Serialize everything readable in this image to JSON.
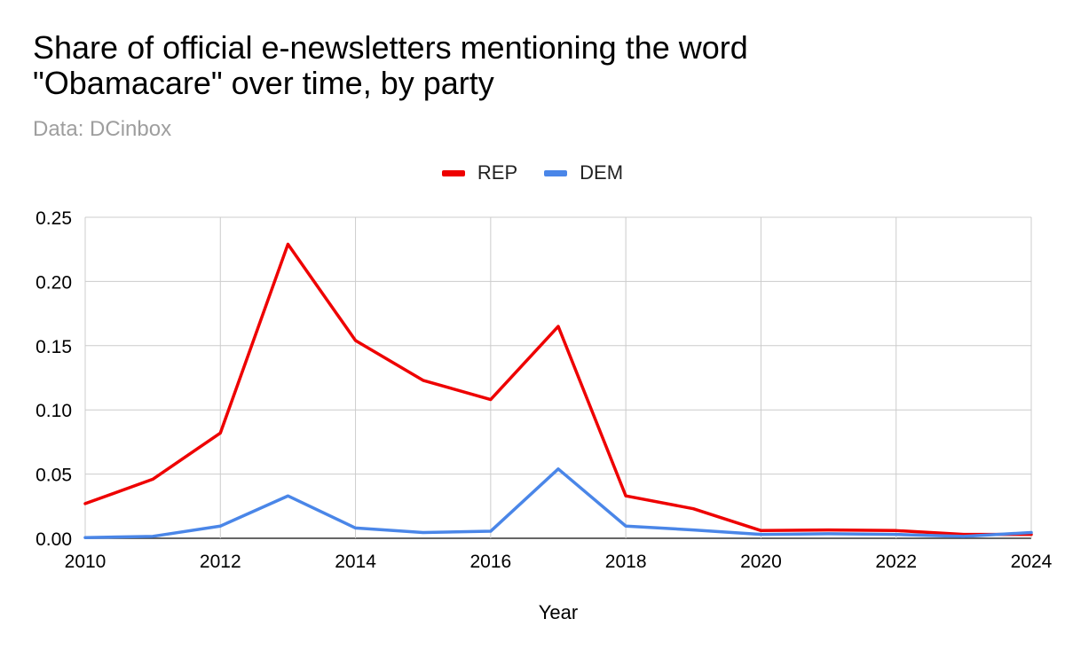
{
  "title": "Share of official e-newsletters mentioning the word \"Obamacare\" over time, by party",
  "subtitle": "Data: DCinbox",
  "chart_data": {
    "type": "line",
    "x": [
      2010,
      2011,
      2012,
      2013,
      2014,
      2015,
      2016,
      2017,
      2018,
      2019,
      2020,
      2021,
      2022,
      2023,
      2024
    ],
    "series": [
      {
        "name": "REP",
        "color": "#ee0000",
        "values": [
          0.027,
          0.046,
          0.082,
          0.229,
          0.154,
          0.123,
          0.108,
          0.165,
          0.033,
          0.023,
          0.006,
          0.0065,
          0.006,
          0.003,
          0.003
        ]
      },
      {
        "name": "DEM",
        "color": "#4a86e8",
        "values": [
          0.0005,
          0.0015,
          0.0095,
          0.033,
          0.008,
          0.0045,
          0.0055,
          0.054,
          0.0095,
          0.0065,
          0.003,
          0.0035,
          0.003,
          0.0015,
          0.0045
        ]
      }
    ],
    "xticks": [
      "2010",
      "2012",
      "2014",
      "2016",
      "2018",
      "2020",
      "2022",
      "2024"
    ],
    "yticks": [
      "0.00",
      "0.05",
      "0.10",
      "0.15",
      "0.20",
      "0.25"
    ],
    "xlim": [
      2010,
      2024
    ],
    "ylim": [
      0,
      0.25
    ],
    "xlabel": "Year",
    "ylabel": "",
    "legend_position": "top-center",
    "grid": true
  }
}
